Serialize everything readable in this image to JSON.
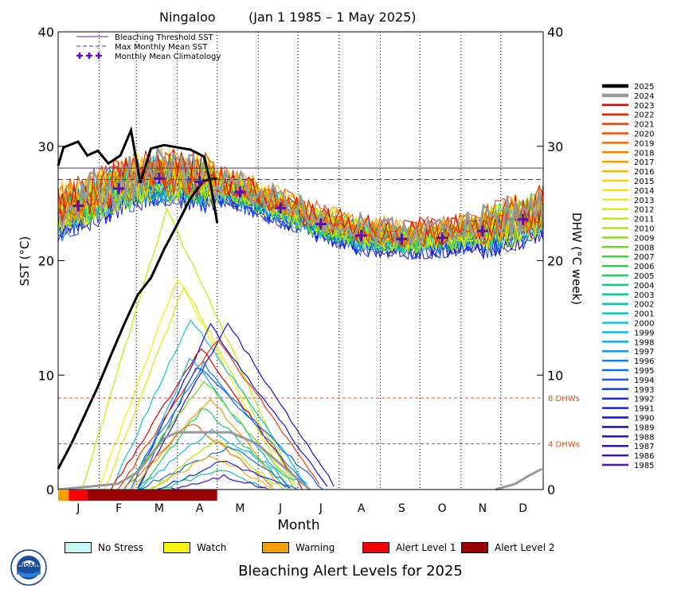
{
  "chart_data": {
    "type": "line",
    "title": "Ningaloo",
    "subtitle": "(Jan 1 1985 – 1 May 2025)",
    "xlabel": "Month",
    "ylabel_left": "SST (°C)",
    "ylabel_right": "DHW (°C week)",
    "ylim": [
      0,
      40
    ],
    "yticks_left": [
      "0",
      "10",
      "20",
      "30",
      "40"
    ],
    "yticks_right": [
      "0",
      "10",
      "20",
      "30",
      "40"
    ],
    "months": [
      "J",
      "F",
      "M",
      "A",
      "M",
      "J",
      "J",
      "A",
      "S",
      "O",
      "N",
      "D"
    ],
    "thresholds": {
      "bleaching_threshold_sst": 28.1,
      "max_monthly_mean_sst": 27.1,
      "dhw_levels": [
        {
          "value": 8,
          "label": "8 DHWs"
        },
        {
          "value": 4,
          "label": "4 DHWs"
        }
      ],
      "threshold_color": "#6a1fa0",
      "dhw_line_color": "#e05020"
    },
    "legend_lines": [
      {
        "label": "Bleaching Threshold SST",
        "style": "solid"
      },
      {
        "label": "Max Monthly Mean SST",
        "style": "dashed"
      },
      {
        "label": "Monthly Mean Climatology",
        "style": "plus"
      }
    ],
    "climatology": [
      24.8,
      26.3,
      27.2,
      26.9,
      26.0,
      24.6,
      23.2,
      22.2,
      21.9,
      22.0,
      22.6,
      23.6
    ],
    "years": [
      "2025",
      "2024",
      "2023",
      "2022",
      "2021",
      "2020",
      "2019",
      "2018",
      "2017",
      "2016",
      "2015",
      "2014",
      "2013",
      "2012",
      "2011",
      "2010",
      "2009",
      "2008",
      "2007",
      "2006",
      "2005",
      "2004",
      "2003",
      "2002",
      "2001",
      "2000",
      "1999",
      "1998",
      "1997",
      "1996",
      "1995",
      "1994",
      "1993",
      "1992",
      "1991",
      "1990",
      "1989",
      "1988",
      "1987",
      "1986",
      "1985"
    ],
    "year_colors": [
      "#000000",
      "#999999",
      "#dd0000",
      "#e82000",
      "#ec3c00",
      "#f05000",
      "#f46a00",
      "#f88400",
      "#f89c00",
      "#f8b400",
      "#f8cc00",
      "#f8e000",
      "#f0f000",
      "#d8f000",
      "#c0ee00",
      "#a8ea00",
      "#88e400",
      "#60de10",
      "#38d830",
      "#20d448",
      "#18d060",
      "#10cc78",
      "#10c890",
      "#10c4a8",
      "#10c4c0",
      "#10c0d8",
      "#10b8e8",
      "#10a8f0",
      "#1094f0",
      "#1080f0",
      "#106cf0",
      "#1058f0",
      "#1044f0",
      "#1030f0",
      "#1020e8",
      "#1010e0",
      "#1010cc",
      "#2010c8",
      "#3010c8",
      "#4010c8",
      "#5010c8"
    ],
    "series_2025": {
      "name": "2025",
      "color": "#000000",
      "sst": [
        [
          0,
          28.3
        ],
        [
          4,
          29.9
        ],
        [
          15,
          30.4
        ],
        [
          22,
          29.2
        ],
        [
          30,
          29.6
        ],
        [
          38,
          28.5
        ],
        [
          47,
          29.2
        ],
        [
          55,
          31.4
        ],
        [
          62,
          26.8
        ],
        [
          70,
          29.8
        ],
        [
          80,
          30.1
        ],
        [
          90,
          29.9
        ],
        [
          100,
          29.7
        ],
        [
          110,
          29.1
        ],
        [
          115,
          26.8
        ],
        [
          120,
          23.3
        ]
      ],
      "dhw": [
        [
          0,
          1.8
        ],
        [
          10,
          4.0
        ],
        [
          20,
          6.5
        ],
        [
          30,
          9.0
        ],
        [
          40,
          11.8
        ],
        [
          50,
          14.5
        ],
        [
          60,
          17.0
        ],
        [
          70,
          18.5
        ],
        [
          80,
          21.0
        ],
        [
          90,
          23.2
        ],
        [
          100,
          25.5
        ],
        [
          110,
          27.0
        ],
        [
          120,
          27.2
        ]
      ]
    },
    "series_2024": {
      "name": "2024",
      "color": "#999999",
      "dhw": [
        [
          0,
          0
        ],
        [
          45,
          0.5
        ],
        [
          60,
          1.5
        ],
        [
          70,
          3.0
        ],
        [
          80,
          4.5
        ],
        [
          90,
          5.0
        ],
        [
          100,
          5.0
        ],
        [
          110,
          5.0
        ],
        [
          120,
          5.0
        ],
        [
          130,
          5.0
        ],
        [
          140,
          4.5
        ],
        [
          150,
          4.0
        ],
        [
          160,
          3.0
        ],
        [
          170,
          2.0
        ],
        [
          180,
          1.0
        ],
        [
          190,
          0
        ]
      ],
      "dhw_late": [
        [
          330,
          0
        ],
        [
          345,
          0.5
        ],
        [
          355,
          1.2
        ],
        [
          365,
          1.8
        ]
      ]
    },
    "sample_dhw_curves": [
      {
        "year": "2011",
        "peak": 24.5,
        "start": 18,
        "peak_day": 82,
        "end": 180
      },
      {
        "year": "2013",
        "peak": 18.5,
        "start": 30,
        "peak_day": 90,
        "end": 175
      },
      {
        "year": "2012",
        "peak": 17.8,
        "start": 35,
        "peak_day": 95,
        "end": 180
      },
      {
        "year": "2000",
        "peak": 15.0,
        "start": 40,
        "peak_day": 100,
        "end": 190
      },
      {
        "year": "1990",
        "peak": 14.3,
        "start": 55,
        "peak_day": 115,
        "end": 205
      },
      {
        "year": "1988",
        "peak": 14.5,
        "start": 60,
        "peak_day": 128,
        "end": 210
      },
      {
        "year": "2021",
        "peak": 13.2,
        "start": 45,
        "peak_day": 120,
        "end": 200
      },
      {
        "year": "2023",
        "peak": 12.4,
        "start": 40,
        "peak_day": 108,
        "end": 185
      },
      {
        "year": "1998",
        "peak": 11.5,
        "start": 55,
        "peak_day": 100,
        "end": 175
      },
      {
        "year": "1996",
        "peak": 11.0,
        "start": 50,
        "peak_day": 110,
        "end": 190
      },
      {
        "year": "1994",
        "peak": 10.8,
        "start": 60,
        "peak_day": 105,
        "end": 200
      },
      {
        "year": "2008",
        "peak": 9.6,
        "start": 50,
        "peak_day": 110,
        "end": 180
      },
      {
        "year": "2017",
        "peak": 8.0,
        "start": 55,
        "peak_day": 115,
        "end": 170
      },
      {
        "year": "2005",
        "peak": 7.2,
        "start": 60,
        "peak_day": 110,
        "end": 175
      },
      {
        "year": "2019",
        "peak": 6.0,
        "start": 50,
        "peak_day": 100,
        "end": 165
      },
      {
        "year": "1999",
        "peak": 5.2,
        "start": 60,
        "peak_day": 115,
        "end": 190
      },
      {
        "year": "2010",
        "peak": 4.4,
        "start": 70,
        "peak_day": 120,
        "end": 170
      },
      {
        "year": "1995",
        "peak": 3.8,
        "start": 60,
        "peak_day": 130,
        "end": 180
      },
      {
        "year": "2016",
        "peak": 3.0,
        "start": 70,
        "peak_day": 115,
        "end": 165
      },
      {
        "year": "1992",
        "peak": 2.5,
        "start": 75,
        "peak_day": 125,
        "end": 175
      },
      {
        "year": "2003",
        "peak": 1.8,
        "start": 80,
        "peak_day": 120,
        "end": 160
      },
      {
        "year": "1986",
        "peak": 1.2,
        "start": 85,
        "peak_day": 125,
        "end": 160
      }
    ],
    "alert_bar_2025": [
      {
        "start_day": 0,
        "end_day": 8,
        "level": "Warning"
      },
      {
        "start_day": 8,
        "end_day": 22,
        "level": "Alert Level 1"
      },
      {
        "start_day": 22,
        "end_day": 120,
        "level": "Alert Level 2"
      }
    ]
  },
  "alert_legend": {
    "title": "Bleaching Alert Levels for 2025",
    "items": [
      {
        "label": "No Stress",
        "color": "#c8f8f8"
      },
      {
        "label": "Watch",
        "color": "#f8f800"
      },
      {
        "label": "Warning",
        "color": "#f8a000"
      },
      {
        "label": "Alert Level 1",
        "color": "#f80000"
      },
      {
        "label": "Alert Level 2",
        "color": "#980000"
      }
    ]
  },
  "logo": {
    "text": "NOAA"
  }
}
